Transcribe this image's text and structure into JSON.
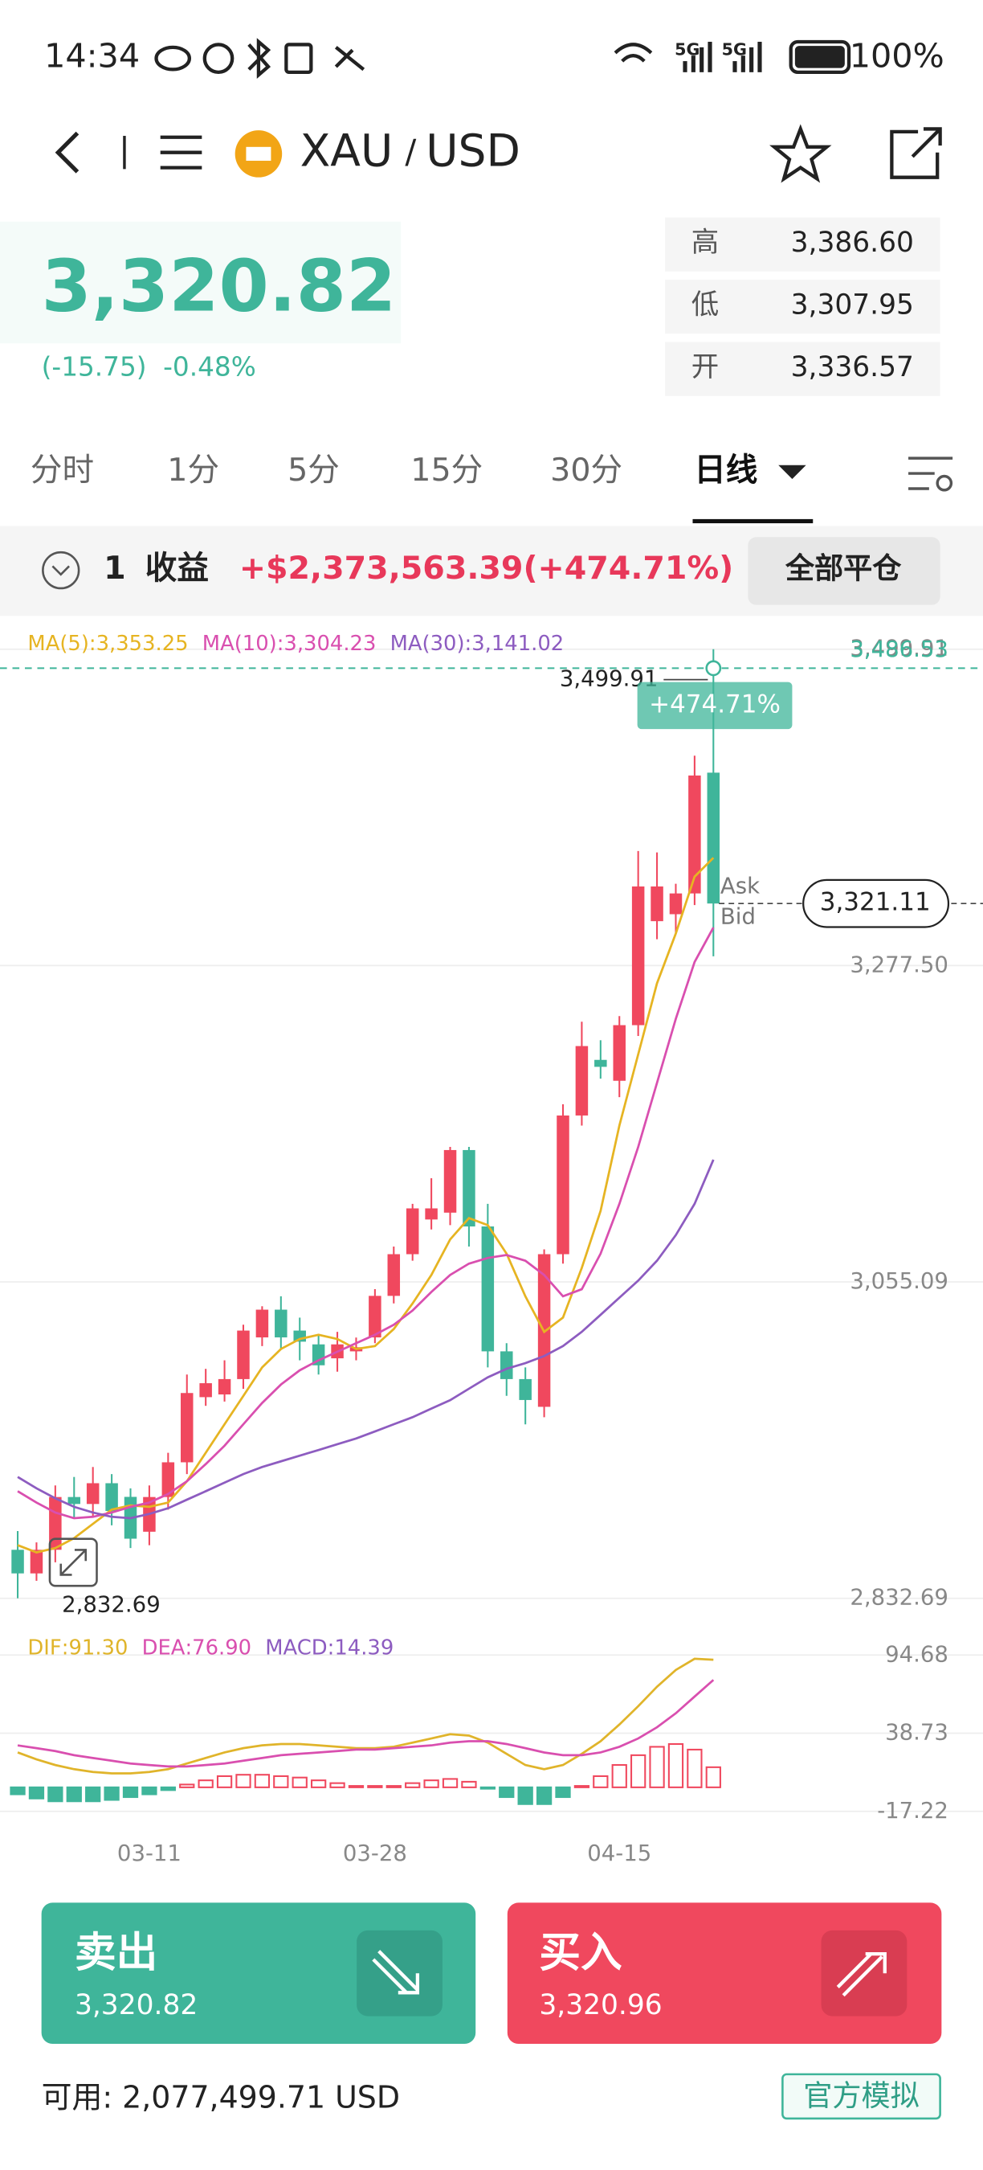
{
  "status_bar": {
    "time": "14:34",
    "network_1": "5G",
    "network_2": "5G",
    "battery": "100%"
  },
  "header": {
    "base": "XAU",
    "separator": "/",
    "quote": "USD"
  },
  "quote": {
    "price": "3,320.82",
    "change": "(-15.75)",
    "change_pct": "-0.48%",
    "stats": [
      {
        "label": "高",
        "value": "3,386.60"
      },
      {
        "label": "低",
        "value": "3,307.95"
      },
      {
        "label": "开",
        "value": "3,336.57"
      }
    ]
  },
  "tabs": [
    "分时",
    "1分",
    "5分",
    "15分",
    "30分",
    "日线"
  ],
  "active_tab": 5,
  "position": {
    "count": "1",
    "label": "收益",
    "pnl": "+$2,373,563.39(+474.71%)",
    "close_all": "全部平仓"
  },
  "chart_data": [
    {
      "type": "candlestick",
      "up_color": "#f0485e",
      "down_color": "#3fb59a",
      "legend_separator": ":",
      "open": [
        2866.8,
        2850.2,
        2866.8,
        2903.9,
        2899.0,
        2913.6,
        2904,
        2879.5,
        2903.9,
        2928.3,
        2974.1,
        2976,
        2986.8,
        3016.1,
        3035.6,
        3020.9,
        3011.2,
        3001.4,
        3006.3,
        3016.1,
        3045.3,
        3074.6,
        3099.0,
        3103.8,
        3147.8,
        3094.1,
        3006.3,
        2986.8,
        2967.3,
        3074.6,
        3172.1,
        3211.2,
        3196.5,
        3235.6,
        3308.7,
        3313.6,
        3328.2,
        3413.1
      ],
      "high": [
        2880,
        2872,
        2912,
        2918,
        2925,
        2920,
        2910,
        2912,
        2935,
        2990,
        2994,
        3000,
        3025,
        3038,
        3045,
        3030,
        3018,
        3020,
        3016,
        3050,
        3080,
        3110,
        3128,
        3150,
        3150,
        3110,
        3012,
        2995,
        3078,
        3180,
        3238,
        3225,
        3242,
        3358,
        3357,
        3335,
        3425,
        3499.91
      ],
      "low": [
        2832.69,
        2845,
        2858,
        2889,
        2890,
        2884,
        2868,
        2870,
        2895,
        2920,
        2968,
        2971,
        2980,
        3010,
        3008,
        3000,
        2990,
        2992,
        3000,
        3012,
        3040,
        3070,
        3092,
        3095,
        3080,
        2995,
        2975,
        2955,
        2960,
        3068,
        3165,
        3198,
        3185,
        3228,
        3296,
        3300,
        3320,
        3284
      ],
      "close": [
        2850.2,
        2866.8,
        2903.9,
        2899.0,
        2913.6,
        2894.1,
        2874.6,
        2903.9,
        2928.3,
        2977.0,
        2983.9,
        2986.8,
        3020.9,
        3035.6,
        3016.1,
        3013.1,
        2996.5,
        3011.2,
        3009.2,
        3045.3,
        3074.6,
        3106.8,
        3106.8,
        3147.8,
        3094.1,
        3006.3,
        2986.8,
        2972.1,
        3074.6,
        3172.1,
        3220.9,
        3206.3,
        3235.6,
        3333.1,
        3333.1,
        3328.2,
        3411.1,
        3321.11
      ],
      "series": [
        {
          "name": "MA(5)",
          "type": "line",
          "color": "#e6b422",
          "values": [
            2870,
            2865,
            2868,
            2875,
            2885,
            2895,
            2898,
            2897,
            2900,
            2915,
            2935,
            2955,
            2975,
            2995,
            3008,
            3015,
            3018,
            3015,
            3008,
            3010,
            3022,
            3040,
            3060,
            3085,
            3100,
            3095,
            3075,
            3045,
            3020,
            3030,
            3065,
            3105,
            3165,
            3215,
            3265,
            3300,
            3340,
            3353.25
          ],
          "value_labels": [
            null,
            null,
            null,
            null,
            null,
            null,
            null,
            null,
            null,
            null,
            null,
            null,
            null,
            null,
            null,
            null,
            null,
            null,
            null,
            null,
            null,
            null,
            null,
            null,
            null,
            null,
            null,
            null,
            null,
            null,
            null,
            null,
            null,
            null,
            null,
            null,
            null,
            "3,353.25"
          ]
        },
        {
          "name": "MA(10)",
          "type": "line",
          "color": "#d94faf",
          "values": [
            2908,
            2900,
            2893,
            2889,
            2890,
            2893,
            2897,
            2900,
            2906,
            2915,
            2927,
            2940,
            2955,
            2970,
            2983,
            2993,
            3000,
            3006,
            3012,
            3018,
            3025,
            3035,
            3048,
            3060,
            3068,
            3072,
            3074,
            3070,
            3060,
            3045,
            3050,
            3075,
            3110,
            3150,
            3195,
            3240,
            3280,
            3304.23
          ],
          "value_labels": [
            null,
            null,
            null,
            null,
            null,
            null,
            null,
            null,
            null,
            null,
            null,
            null,
            null,
            null,
            null,
            null,
            null,
            null,
            null,
            null,
            null,
            null,
            null,
            null,
            null,
            null,
            null,
            null,
            null,
            null,
            null,
            null,
            null,
            null,
            null,
            null,
            null,
            "3,304.23"
          ]
        },
        {
          "name": "MA(30)",
          "type": "line",
          "color": "#8d5cc0",
          "values": [
            2918,
            2910,
            2903,
            2897,
            2893,
            2890,
            2889,
            2892,
            2896,
            2902,
            2908,
            2914,
            2920,
            2925,
            2929,
            2933,
            2937,
            2941,
            2945,
            2950,
            2955,
            2960,
            2966,
            2972,
            2980,
            2988,
            2994,
            2998,
            3003,
            3010,
            3020,
            3032,
            3044,
            3056,
            3070,
            3088,
            3110,
            3141.02
          ],
          "value_labels": [
            null,
            null,
            null,
            null,
            null,
            null,
            null,
            null,
            null,
            null,
            null,
            null,
            null,
            null,
            null,
            null,
            null,
            null,
            null,
            null,
            null,
            null,
            null,
            null,
            null,
            null,
            null,
            null,
            null,
            null,
            null,
            null,
            null,
            null,
            null,
            null,
            null,
            "3,141.02"
          ]
        }
      ],
      "ylim": [
        2832.69,
        3499.91
      ],
      "yticks": [
        {
          "value": 3499.91,
          "label": "3,499.91"
        },
        {
          "value": 3277.5,
          "label": "3,277.50"
        },
        {
          "value": 3055.09,
          "label": "3,055.09"
        },
        {
          "value": 2832.69,
          "label": "2,832.69"
        }
      ],
      "grid": true,
      "high_marker": {
        "value": 3499.91,
        "label": "3,499.91"
      },
      "low_marker": {
        "value": 2832.69,
        "label": "2,832.69"
      },
      "position_line": {
        "value": 3486.53,
        "label": "3,486.53",
        "pnl_label": "+474.71%",
        "color": "#3fb59a"
      },
      "last_price": {
        "value": 3321.11,
        "label": "3,321.11",
        "ask": "Ask",
        "bid": "Bid"
      }
    },
    {
      "type": "macd",
      "up_color": "#f0485e",
      "down_color": "#3fb59a",
      "legend_separator": ":",
      "categories": [
        null,
        null,
        null,
        null,
        null,
        null,
        null,
        "03-11",
        null,
        null,
        null,
        null,
        null,
        null,
        null,
        null,
        null,
        null,
        null,
        "03-28",
        null,
        null,
        null,
        null,
        null,
        null,
        null,
        null,
        null,
        null,
        null,
        null,
        "04-15",
        null,
        null,
        null,
        null,
        null
      ],
      "series": [
        {
          "name": "DIF",
          "type": "line",
          "color": "#e0b42a",
          "values": [
            25,
            20,
            16,
            13,
            11,
            10,
            10,
            11,
            13,
            17,
            21,
            25,
            28,
            30,
            31,
            31,
            30,
            29,
            28,
            28,
            29,
            32,
            35,
            38,
            37,
            32,
            24,
            16,
            13,
            16,
            24,
            33,
            45,
            58,
            72,
            84,
            92,
            91.3
          ],
          "value_labels": [
            null,
            null,
            null,
            null,
            null,
            null,
            null,
            null,
            null,
            null,
            null,
            null,
            null,
            null,
            null,
            null,
            null,
            null,
            null,
            null,
            null,
            null,
            null,
            null,
            null,
            null,
            null,
            null,
            null,
            null,
            null,
            null,
            null,
            null,
            null,
            null,
            null,
            "91.30"
          ]
        },
        {
          "name": "DEA",
          "type": "line",
          "color": "#d94faf",
          "values": [
            30,
            28,
            26,
            23,
            21,
            19,
            17,
            16,
            15,
            15,
            16,
            17,
            19,
            21,
            23,
            24,
            25,
            26,
            27,
            27,
            28,
            29,
            30,
            32,
            33,
            33,
            31,
            28,
            25,
            23,
            23,
            25,
            29,
            35,
            43,
            53,
            65,
            76.9
          ],
          "value_labels": [
            null,
            null,
            null,
            null,
            null,
            null,
            null,
            null,
            null,
            null,
            null,
            null,
            null,
            null,
            null,
            null,
            null,
            null,
            null,
            null,
            null,
            null,
            null,
            null,
            null,
            null,
            null,
            null,
            null,
            null,
            null,
            null,
            null,
            null,
            null,
            null,
            null,
            "76.90"
          ]
        },
        {
          "name": "MACD",
          "type": "bar",
          "color": "#8d5cc0",
          "values": [
            -5,
            -8,
            -10,
            -10,
            -10,
            -9,
            -7,
            -5,
            -2,
            2,
            5,
            8,
            9,
            9,
            8,
            7,
            5,
            3,
            1,
            1,
            1,
            3,
            5,
            6,
            4,
            -1,
            -7,
            -12,
            -12,
            -7,
            1,
            8,
            16,
            23,
            29,
            31,
            27,
            14.39
          ],
          "value_labels": [
            null,
            null,
            null,
            null,
            null,
            null,
            null,
            null,
            null,
            null,
            null,
            null,
            null,
            null,
            null,
            null,
            null,
            null,
            null,
            null,
            null,
            null,
            null,
            null,
            null,
            null,
            null,
            null,
            null,
            null,
            null,
            null,
            null,
            null,
            null,
            null,
            null,
            "14.39"
          ]
        }
      ],
      "ylim": [
        -17.22,
        94.68
      ],
      "yticks": [
        94.68,
        38.73,
        -17.22
      ],
      "grid": true
    }
  ],
  "trade": {
    "sell_label": "卖出",
    "sell_price": "3,320.82",
    "buy_label": "买入",
    "buy_price": "3,320.96",
    "available": "可用: 2,077,499.71 USD",
    "mode": "官方模拟"
  }
}
